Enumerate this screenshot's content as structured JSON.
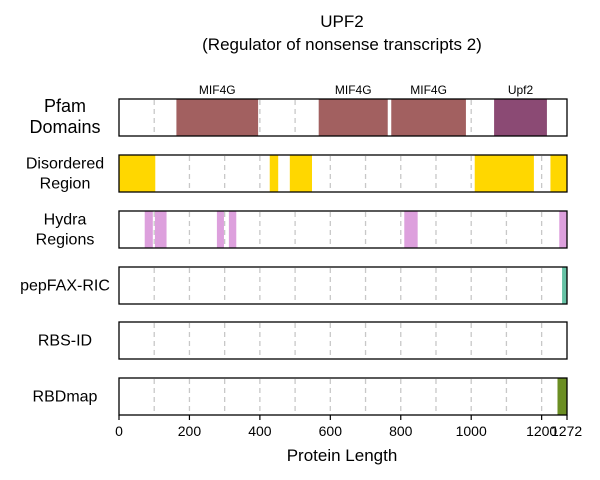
{
  "chart_data": {
    "type": "track",
    "title": "UPF2",
    "subtitle": "(Regulator of nonsense transcripts 2)",
    "xlabel": "Protein Length",
    "protein_length": 1272,
    "xlim": [
      0,
      1272
    ],
    "ticks": [
      0,
      200,
      400,
      600,
      800,
      1000,
      1200,
      1272
    ],
    "tick_labels": [
      "0",
      "200",
      "400",
      "600",
      "800",
      "1000",
      "1200",
      "1272"
    ],
    "grid": true,
    "grid_positions": [
      100,
      200,
      300,
      400,
      500,
      600,
      700,
      800,
      900,
      1000,
      1100,
      1200
    ],
    "tracks": [
      {
        "label_lines": [
          "Pfam",
          "Domains"
        ],
        "color": "#a26060",
        "segments": [
          {
            "start": 163,
            "end": 395,
            "label": "MIF4G",
            "color": "#a26060"
          },
          {
            "start": 567,
            "end": 763,
            "label": "MIF4G",
            "color": "#a26060"
          },
          {
            "start": 773,
            "end": 985,
            "label": "MIF4G",
            "color": "#a26060"
          },
          {
            "start": 1065,
            "end": 1215,
            "label": "Upf2",
            "color": "#8b4a74"
          }
        ]
      },
      {
        "label_lines": [
          "Disordered",
          "Region"
        ],
        "color": "#ffd700",
        "segments": [
          {
            "start": 0,
            "end": 103
          },
          {
            "start": 428,
            "end": 452
          },
          {
            "start": 485,
            "end": 548
          },
          {
            "start": 1010,
            "end": 1178
          },
          {
            "start": 1225,
            "end": 1272
          }
        ]
      },
      {
        "label_lines": [
          "Hydra",
          "Regions"
        ],
        "color": "#dda0dd",
        "segments": [
          {
            "start": 73,
            "end": 96
          },
          {
            "start": 102,
            "end": 135
          },
          {
            "start": 278,
            "end": 298
          },
          {
            "start": 312,
            "end": 333
          },
          {
            "start": 810,
            "end": 848
          },
          {
            "start": 1250,
            "end": 1272
          }
        ]
      },
      {
        "label_lines": [
          "pepFAX-RIC"
        ],
        "color": "#66c2a5",
        "segments": [
          {
            "start": 1258,
            "end": 1272
          }
        ]
      },
      {
        "label_lines": [
          "RBS-ID"
        ],
        "color": "#999999",
        "segments": []
      },
      {
        "label_lines": [
          "RBDmap"
        ],
        "color": "#6b8e23",
        "segments": [
          {
            "start": 1245,
            "end": 1272
          }
        ]
      }
    ]
  }
}
